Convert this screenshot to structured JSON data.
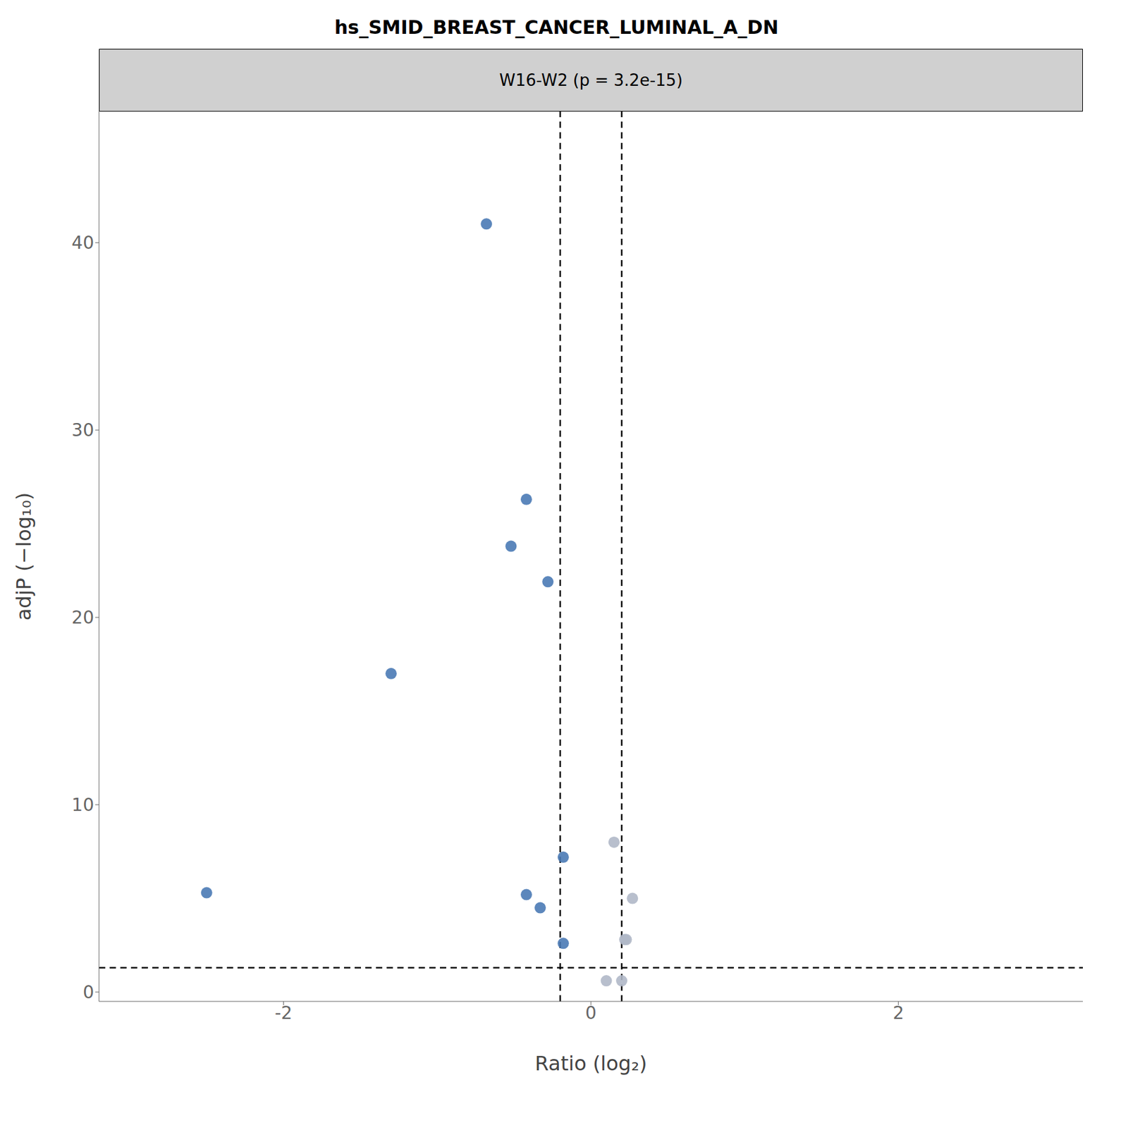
{
  "chart_data": {
    "type": "scatter",
    "title": "hs_SMID_BREAST_CANCER_LUMINAL_A_DN",
    "subtitle": "W16-W2 (p = 3.2e-15)",
    "xlabel": "Ratio (log₂)",
    "ylabel": "adjP (−log₁₀)",
    "xlim": [
      -3.2,
      3.2
    ],
    "ylim": [
      -0.5,
      47
    ],
    "xticks": [
      -2,
      0,
      2
    ],
    "yticks": [
      0,
      10,
      20,
      30,
      40
    ],
    "vlines": [
      -0.2,
      0.2
    ],
    "hlines": [
      1.3
    ],
    "grid": false,
    "series": [
      {
        "color": "#4a7ab5",
        "x": [
          -2.5,
          -1.3,
          -0.68,
          -0.52,
          -0.42,
          -0.28,
          -0.42,
          -0.33,
          -0.18,
          -0.18
        ],
        "values": [
          5.3,
          17.0,
          41.0,
          23.8,
          26.3,
          21.9,
          5.2,
          4.5,
          2.6,
          7.2
        ]
      },
      {
        "color": "#b0b8c8",
        "x": [
          0.15,
          0.22,
          0.23,
          0.27,
          0.1,
          0.2
        ],
        "values": [
          8.0,
          2.8,
          2.8,
          5.0,
          0.6,
          0.6
        ]
      }
    ]
  }
}
